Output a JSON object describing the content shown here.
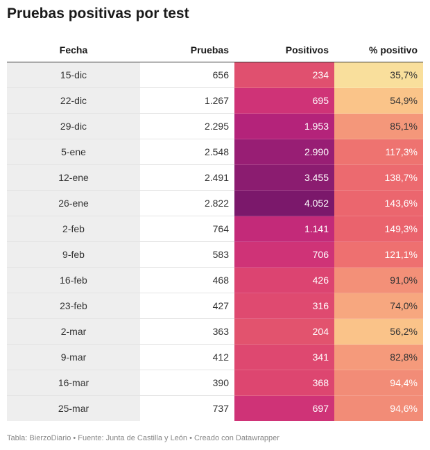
{
  "title": "Pruebas positivas por test",
  "footer": "Tabla: BierzoDiario • Fuente: Junta de Castilla y León • Creado con Datawrapper",
  "chart_data": {
    "type": "table",
    "title": "Pruebas positivas por test",
    "columns": [
      "Fecha",
      "Pruebas",
      "Positivos",
      "% positivo"
    ],
    "rows": [
      {
        "fecha": "15-dic",
        "pruebas": "656",
        "positivos": "234",
        "pct": "35,7%",
        "pos_color": "#e0506f",
        "pct_color": "#f9df9c",
        "pct_text_color": "#333333"
      },
      {
        "fecha": "22-dic",
        "pruebas": "1.267",
        "positivos": "695",
        "pct": "54,9%",
        "pos_color": "#cf3377",
        "pct_color": "#fac489",
        "pct_text_color": "#333333"
      },
      {
        "fecha": "29-dic",
        "pruebas": "2.295",
        "positivos": "1.953",
        "pct": "85,1%",
        "pos_color": "#b4237a",
        "pct_color": "#f4977a",
        "pct_text_color": "#333333"
      },
      {
        "fecha": "5-ene",
        "pruebas": "2.548",
        "positivos": "2.990",
        "pct": "117,3%",
        "pos_color": "#981e74",
        "pct_color": "#ee7370",
        "pct_text_color": "#ffffff"
      },
      {
        "fecha": "12-ene",
        "pruebas": "2.491",
        "positivos": "3.455",
        "pct": "138,7%",
        "pos_color": "#8b1c70",
        "pct_color": "#ec6a6f",
        "pct_text_color": "#ffffff"
      },
      {
        "fecha": "26-ene",
        "pruebas": "2.822",
        "positivos": "4.052",
        "pct": "143,6%",
        "pos_color": "#7b186b",
        "pct_color": "#eb666e",
        "pct_text_color": "#ffffff"
      },
      {
        "fecha": "2-feb",
        "pruebas": "764",
        "positivos": "1.141",
        "pct": "149,3%",
        "pos_color": "#c32a79",
        "pct_color": "#ea636d",
        "pct_text_color": "#ffffff"
      },
      {
        "fecha": "9-feb",
        "pruebas": "583",
        "positivos": "706",
        "pct": "121,1%",
        "pos_color": "#cf3377",
        "pct_color": "#ee7070",
        "pct_text_color": "#ffffff"
      },
      {
        "fecha": "16-feb",
        "pruebas": "468",
        "positivos": "426",
        "pct": "91,0%",
        "pos_color": "#dc4471",
        "pct_color": "#f39078",
        "pct_text_color": "#333333"
      },
      {
        "fecha": "23-feb",
        "pruebas": "427",
        "positivos": "316",
        "pct": "74,0%",
        "pos_color": "#df4a70",
        "pct_color": "#f7a77f",
        "pct_text_color": "#333333"
      },
      {
        "fecha": "2-mar",
        "pruebas": "363",
        "positivos": "204",
        "pct": "56,2%",
        "pos_color": "#e2536e",
        "pct_color": "#fac389",
        "pct_text_color": "#333333"
      },
      {
        "fecha": "9-mar",
        "pruebas": "412",
        "positivos": "341",
        "pct": "82,8%",
        "pos_color": "#de4870",
        "pct_color": "#f59a7b",
        "pct_text_color": "#333333"
      },
      {
        "fecha": "16-mar",
        "pruebas": "390",
        "positivos": "368",
        "pct": "94,4%",
        "pos_color": "#dd4670",
        "pct_color": "#f28c77",
        "pct_text_color": "#ffffff"
      },
      {
        "fecha": "25-mar",
        "pruebas": "737",
        "positivos": "697",
        "pct": "94,6%",
        "pos_color": "#cf3377",
        "pct_color": "#f28c77",
        "pct_text_color": "#ffffff"
      }
    ]
  }
}
